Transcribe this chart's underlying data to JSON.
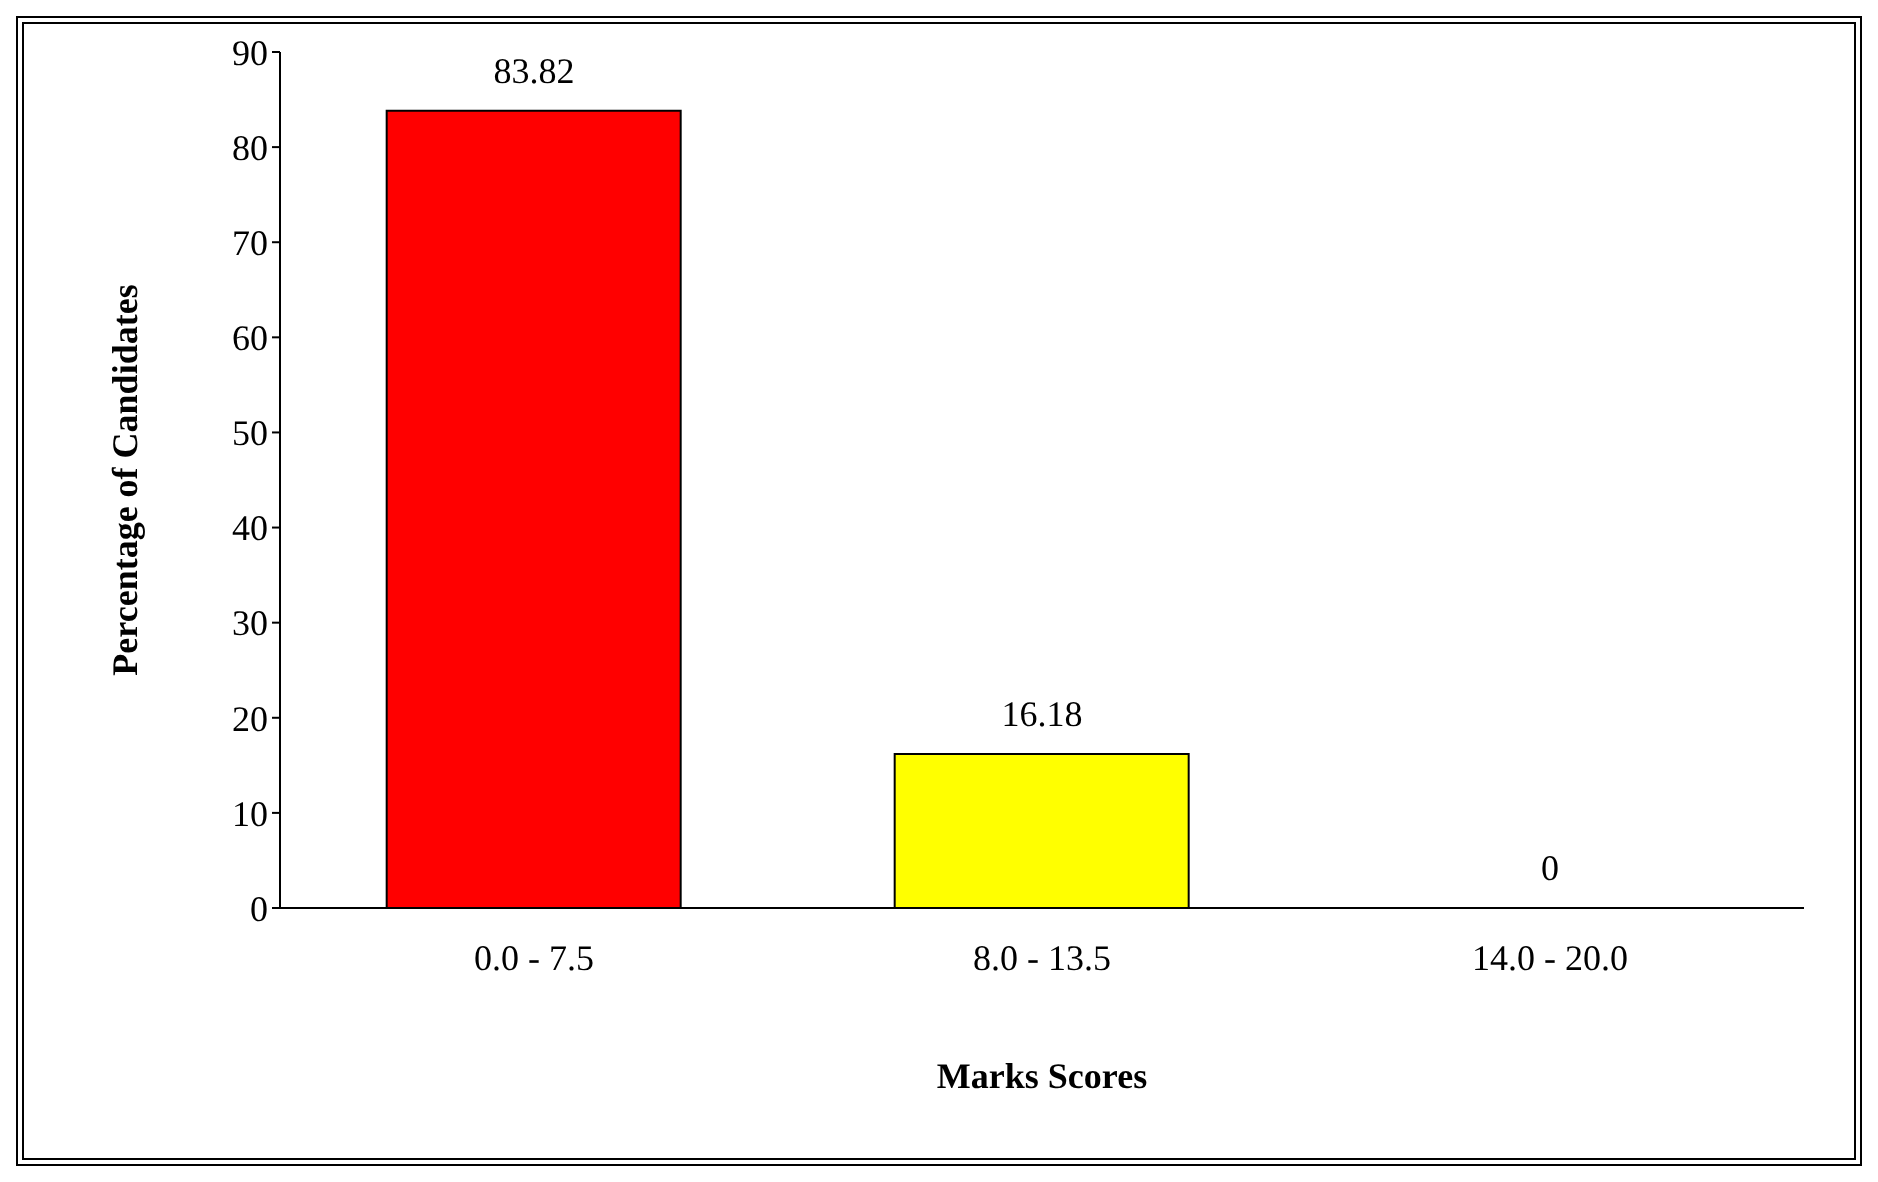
{
  "chart_data": {
    "type": "bar",
    "xlabel": "Marks Scores",
    "ylabel": "Percentage of Candidates",
    "categories": [
      "0.0 - 7.5",
      "8.0 - 13.5",
      "14.0 - 20.0"
    ],
    "values": [
      83.82,
      16.18,
      0
    ],
    "colors": [
      "#ff0000",
      "#ffff00",
      "#ffff00"
    ],
    "ylim": [
      0,
      90
    ],
    "yticks": [
      0,
      10,
      20,
      30,
      40,
      50,
      60,
      70,
      80,
      90
    ],
    "grid": false,
    "data_labels": true
  }
}
